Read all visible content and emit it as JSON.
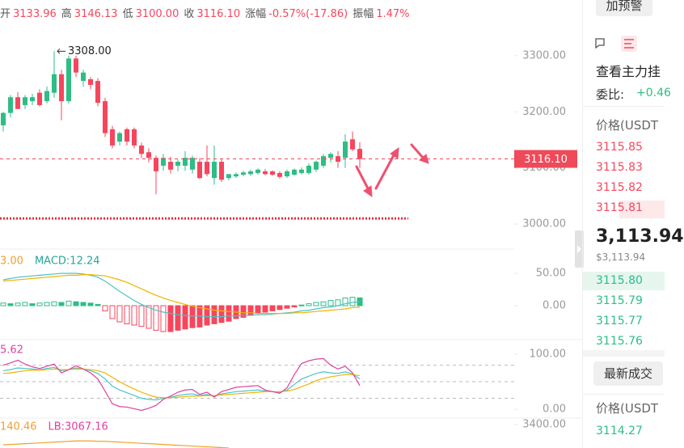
{
  "header": [
    {
      "label": "开",
      "value": "3133.96"
    },
    {
      "label": "高",
      "value": "3146.13"
    },
    {
      "label": "低",
      "value": "3100.00"
    },
    {
      "label": "收",
      "value": "3116.10"
    },
    {
      "label": "涨幅",
      "value": "-0.57%(-17.86)"
    },
    {
      "label": "振幅",
      "value": "1.47%"
    }
  ],
  "chart_data": [
    {
      "type": "candlestick",
      "up_color": "#2ebd85",
      "down_color": "#f6465d",
      "open": [
        3176,
        3198,
        3226,
        3212,
        3219,
        3234,
        3219,
        3234,
        3267,
        3219,
        3295,
        3255,
        3258,
        3255,
        3219,
        3169,
        3147,
        3169,
        3169,
        3140,
        3128,
        3118,
        3104,
        3111,
        3104,
        3104,
        3097,
        3111,
        3111,
        3082,
        3111,
        3082,
        3085,
        3088,
        3089,
        3091,
        3094,
        3094,
        3091,
        3085,
        3088,
        3091,
        3091,
        3097,
        3104,
        3118,
        3121,
        3118,
        3151,
        3134
      ],
      "high": [
        3200,
        3230,
        3235,
        3230,
        3232,
        3240,
        3245,
        3308,
        3275,
        3300,
        3300,
        3275,
        3262,
        3260,
        3225,
        3175,
        3165,
        3172,
        3172,
        3145,
        3135,
        3122,
        3125,
        3120,
        3115,
        3130,
        3122,
        3118,
        3140,
        3140,
        3115,
        3088,
        3092,
        3095,
        3097,
        3099,
        3098,
        3096,
        3094,
        3097,
        3099,
        3101,
        3108,
        3113,
        3125,
        3128,
        3130,
        3160,
        3165,
        3146
      ],
      "low": [
        3165,
        3190,
        3205,
        3205,
        3212,
        3210,
        3215,
        3225,
        3185,
        3215,
        3262,
        3245,
        3240,
        3210,
        3155,
        3135,
        3140,
        3140,
        3135,
        3118,
        3110,
        3053,
        3095,
        3090,
        3094,
        3095,
        3090,
        3080,
        3085,
        3070,
        3075,
        3078,
        3082,
        3085,
        3086,
        3088,
        3087,
        3086,
        3081,
        3082,
        3086,
        3088,
        3088,
        3093,
        3100,
        3110,
        3100,
        3100,
        3130,
        3100
      ],
      "close": [
        3198,
        3226,
        3205,
        3226,
        3226,
        3212,
        3237,
        3267,
        3219,
        3295,
        3270,
        3270,
        3248,
        3216,
        3162,
        3140,
        3162,
        3147,
        3140,
        3125,
        3118,
        3094,
        3118,
        3097,
        3111,
        3118,
        3118,
        3082,
        3089,
        3111,
        3079,
        3089,
        3089,
        3092,
        3094,
        3097,
        3089,
        3088,
        3084,
        3094,
        3097,
        3097,
        3104,
        3111,
        3121,
        3125,
        3111,
        3147,
        3133,
        3116
      ],
      "high_label": "3308.00",
      "last": {
        "value": 3116.1,
        "label": "3116.10"
      },
      "level_line": 3010,
      "ylim": [
        2967,
        3356
      ],
      "yticks": [
        {
          "value": 3000,
          "label": "3000.00"
        },
        {
          "value": 3100,
          "label": "3100.00"
        },
        {
          "value": 3200,
          "label": "3200.00"
        },
        {
          "value": 3300,
          "label": "3300.00"
        }
      ]
    },
    {
      "type": "macd",
      "legend": [
        {
          "text": "3.00",
          "color": "#f0a030"
        },
        {
          "text": "MACD:12.24",
          "color": "#26a69a"
        }
      ],
      "histogram": [
        4,
        3,
        4,
        5,
        3,
        4,
        5,
        6,
        5,
        7,
        6,
        5,
        4,
        2,
        -8,
        -20,
        -25,
        -28,
        -30,
        -32,
        -35,
        -38,
        -40,
        -40,
        -38,
        -36,
        -34,
        -33,
        -30,
        -28,
        -26,
        -24,
        -20,
        -18,
        -15,
        -12,
        -10,
        -8,
        -6,
        -4,
        -2,
        1,
        3,
        5,
        6,
        8,
        9,
        12,
        13,
        12
      ],
      "series": [
        {
          "color": "#4cc3c9",
          "values": [
            40,
            42,
            44,
            45,
            46,
            47,
            48,
            49,
            50,
            50,
            50,
            49,
            47,
            44,
            38,
            30,
            22,
            15,
            8,
            2,
            -3,
            -7,
            -10,
            -12,
            -14,
            -15,
            -16,
            -16,
            -17,
            -17,
            -17,
            -16,
            -16,
            -15,
            -15,
            -14,
            -14,
            -13,
            -12,
            -11,
            -10,
            -8,
            -7,
            -5,
            -3,
            -2,
            0,
            3,
            5,
            6
          ]
        },
        {
          "color": "#f0b400",
          "values": [
            38,
            39,
            40,
            41,
            42,
            43,
            44,
            45,
            46,
            47,
            47,
            48,
            48,
            47,
            46,
            43,
            40,
            36,
            31,
            26,
            21,
            16,
            12,
            8,
            5,
            2,
            -1,
            -3,
            -5,
            -7,
            -8,
            -9,
            -10,
            -11,
            -11,
            -12,
            -12,
            -12,
            -12,
            -12,
            -11,
            -11,
            -10,
            -9,
            -8,
            -7,
            -6,
            -5,
            -3,
            -2
          ]
        }
      ],
      "ylim": [
        -42.5,
        78.75
      ],
      "yticks": [
        {
          "value": 0,
          "label": "0.00"
        },
        {
          "value": 50,
          "label": "50.00"
        }
      ]
    },
    {
      "type": "kdj",
      "legend": [
        {
          "text": "5.62",
          "color": "#e040a0"
        }
      ],
      "hlines": [
        80,
        50,
        20
      ],
      "series": [
        {
          "color": "#4cc3c9",
          "values": [
            70,
            72,
            75,
            74,
            73,
            72,
            74,
            76,
            70,
            72,
            75,
            73,
            70,
            65,
            55,
            42,
            35,
            30,
            25,
            20,
            18,
            17,
            20,
            22,
            25,
            27,
            28,
            25,
            27,
            24,
            28,
            30,
            32,
            33,
            34,
            35,
            33,
            32,
            31,
            35,
            45,
            55,
            60,
            65,
            68,
            66,
            65,
            68,
            64,
            55
          ]
        },
        {
          "color": "#f0b400",
          "values": [
            65,
            66,
            68,
            70,
            71,
            71,
            72,
            73,
            72,
            72,
            73,
            73,
            72,
            70,
            66,
            58,
            50,
            43,
            37,
            31,
            26,
            22,
            21,
            21,
            22,
            23,
            24,
            24,
            25,
            25,
            26,
            27,
            28,
            29,
            30,
            31,
            32,
            32,
            32,
            33,
            36,
            41,
            46,
            52,
            56,
            59,
            61,
            63,
            63,
            61
          ]
        },
        {
          "color": "#e040a0",
          "values": [
            80,
            84,
            89,
            82,
            77,
            74,
            78,
            82,
            66,
            72,
            79,
            73,
            66,
            55,
            33,
            10,
            5,
            4,
            1,
            -2,
            2,
            7,
            18,
            24,
            31,
            35,
            36,
            27,
            31,
            22,
            32,
            36,
            40,
            41,
            42,
            43,
            35,
            32,
            29,
            39,
            63,
            83,
            88,
            91,
            92,
            80,
            73,
            78,
            66,
            43
          ]
        }
      ],
      "ylim": [
        -13,
        119
      ],
      "yticks": [
        {
          "value": 0,
          "label": "0.00"
        },
        {
          "value": 100,
          "label": "100.00"
        }
      ]
    },
    {
      "type": "line",
      "legend": [
        {
          "text": "140.46",
          "color": "#f0a030"
        },
        {
          "text": "LB:3067.16",
          "color": "#e040a0"
        }
      ],
      "series": [
        {
          "color": "#f0a030",
          "values": [
            3348,
            3349,
            3350,
            3351,
            3352,
            3353,
            3354,
            3355,
            3356,
            3357,
            3358,
            3358,
            3358,
            3357,
            3357,
            3356,
            3355,
            3354,
            3353,
            3352,
            3351,
            3350,
            3349,
            3348,
            3347,
            3346,
            3345,
            3344,
            3343,
            3342,
            3341,
            3340
          ]
        }
      ],
      "ylim": [
        3340,
        3410
      ],
      "yticks": [
        {
          "value": 3400,
          "label": "3400.00"
        }
      ]
    }
  ],
  "sidebar": {
    "alert_button": "加预警",
    "title": "查看主力挂",
    "ratio_label": "委比:",
    "ratio_value": "+0.46",
    "price_header": "价格(USDT",
    "asks": [
      "3115.85",
      "3115.83",
      "3115.82",
      "3115.81"
    ],
    "last_price": "3,113.94",
    "last_price_usd": "$3,113.94",
    "bids": [
      "3115.80",
      "3115.79",
      "3115.77",
      "3115.76"
    ],
    "trades_button": "最新成交",
    "trades_header": "价格(USDT",
    "trades": [
      "3114.27"
    ]
  }
}
